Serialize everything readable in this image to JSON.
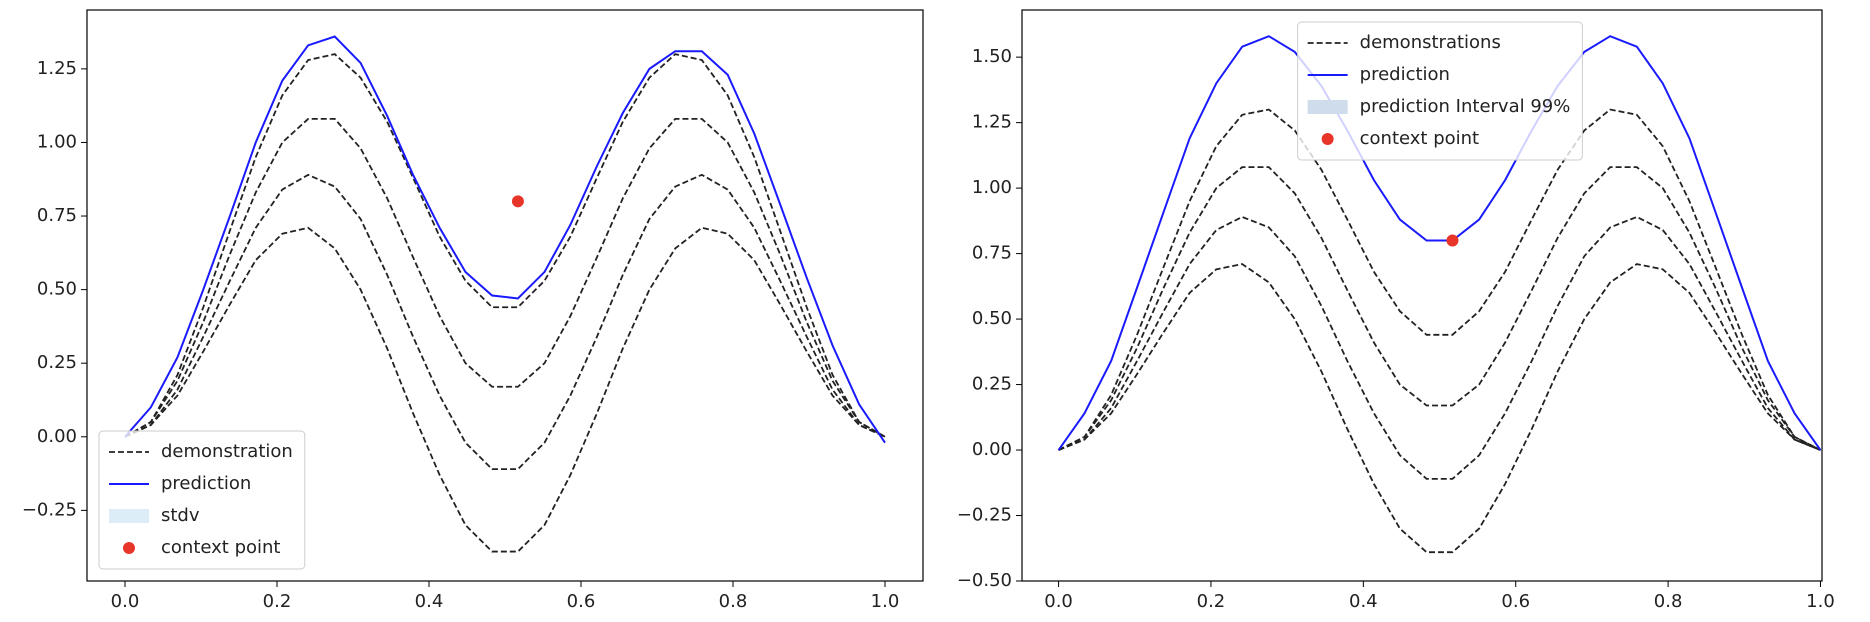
{
  "chart_data": [
    {
      "type": "line",
      "x": [
        0,
        0.034,
        0.069,
        0.103,
        0.138,
        0.172,
        0.207,
        0.241,
        0.276,
        0.31,
        0.345,
        0.379,
        0.414,
        0.448,
        0.483,
        0.517,
        0.552,
        0.586,
        0.621,
        0.655,
        0.69,
        0.724,
        0.759,
        0.793,
        0.828,
        0.862,
        0.897,
        0.931,
        0.966,
        1
      ],
      "xlim": [
        -0.05,
        1.05
      ],
      "ylim": [
        -0.49,
        1.45
      ],
      "xticks": [
        {
          "value": 0,
          "label": "0.0"
        },
        {
          "value": 0.2,
          "label": "0.2"
        },
        {
          "value": 0.4,
          "label": "0.4"
        },
        {
          "value": 0.6,
          "label": "0.6"
        },
        {
          "value": 0.8,
          "label": "0.8"
        },
        {
          "value": 1,
          "label": "1.0"
        }
      ],
      "yticks": [
        {
          "value": -0.25,
          "label": "−0.25"
        },
        {
          "value": 0,
          "label": "0.00"
        },
        {
          "value": 0.25,
          "label": "0.25"
        },
        {
          "value": 0.5,
          "label": "0.50"
        },
        {
          "value": 0.75,
          "label": "0.75"
        },
        {
          "value": 1,
          "label": "1.00"
        },
        {
          "value": 1.25,
          "label": "1.25"
        }
      ],
      "demonstrations": {
        "name": "demonstration",
        "color": "#222222",
        "curves": [
          [
            0,
            0.05,
            0.21,
            0.44,
            0.7,
            0.95,
            1.16,
            1.28,
            1.3,
            1.22,
            1.07,
            0.88,
            0.68,
            0.53,
            0.44,
            0.44,
            0.53,
            0.68,
            0.88,
            1.07,
            1.22,
            1.3,
            1.28,
            1.16,
            0.95,
            0.7,
            0.44,
            0.21,
            0.05,
            0
          ],
          [
            0,
            0.05,
            0.19,
            0.39,
            0.62,
            0.83,
            1.0,
            1.08,
            1.08,
            0.98,
            0.81,
            0.61,
            0.41,
            0.25,
            0.17,
            0.17,
            0.25,
            0.41,
            0.61,
            0.81,
            0.98,
            1.08,
            1.08,
            1.0,
            0.83,
            0.62,
            0.39,
            0.19,
            0.05,
            0
          ],
          [
            0,
            0.04,
            0.16,
            0.34,
            0.53,
            0.71,
            0.84,
            0.89,
            0.85,
            0.74,
            0.55,
            0.34,
            0.14,
            -0.02,
            -0.11,
            -0.11,
            -0.02,
            0.14,
            0.34,
            0.55,
            0.74,
            0.85,
            0.89,
            0.84,
            0.71,
            0.53,
            0.34,
            0.16,
            0.04,
            0
          ],
          [
            0,
            0.04,
            0.14,
            0.29,
            0.45,
            0.6,
            0.69,
            0.71,
            0.64,
            0.5,
            0.3,
            0.08,
            -0.13,
            -0.3,
            -0.39,
            -0.39,
            -0.3,
            -0.13,
            0.08,
            0.3,
            0.5,
            0.64,
            0.71,
            0.69,
            0.6,
            0.45,
            0.29,
            0.14,
            0.04,
            0
          ]
        ]
      },
      "prediction": {
        "name": "prediction",
        "color": "#1a1aff",
        "values": [
          0,
          0.1,
          0.27,
          0.5,
          0.75,
          1.0,
          1.21,
          1.33,
          1.36,
          1.27,
          1.09,
          0.89,
          0.71,
          0.56,
          0.48,
          0.47,
          0.56,
          0.72,
          0.92,
          1.1,
          1.25,
          1.31,
          1.31,
          1.23,
          1.03,
          0.79,
          0.54,
          0.31,
          0.11,
          -0.02
        ]
      },
      "interval": {
        "name": "stdv",
        "color": "#dcedf7"
      },
      "context": {
        "name": "context point",
        "color": "#e8352a",
        "x": [
          0.517
        ],
        "y": [
          0.8
        ]
      },
      "legend": "lower left"
    },
    {
      "type": "line",
      "x": [
        0,
        0.034,
        0.069,
        0.103,
        0.138,
        0.172,
        0.207,
        0.241,
        0.276,
        0.31,
        0.345,
        0.379,
        0.414,
        0.448,
        0.483,
        0.517,
        0.552,
        0.586,
        0.621,
        0.655,
        0.69,
        0.724,
        0.759,
        0.793,
        0.828,
        0.862,
        0.897,
        0.931,
        0.966,
        1
      ],
      "xlim": [
        -0.048,
        1.002
      ],
      "ylim": [
        -0.5,
        1.68
      ],
      "xticks": [
        {
          "value": 0,
          "label": "0.0"
        },
        {
          "value": 0.2,
          "label": "0.2"
        },
        {
          "value": 0.4,
          "label": "0.4"
        },
        {
          "value": 0.6,
          "label": "0.6"
        },
        {
          "value": 0.8,
          "label": "0.8"
        },
        {
          "value": 1,
          "label": "1.0"
        }
      ],
      "yticks": [
        {
          "value": -0.5,
          "label": "−0.50"
        },
        {
          "value": -0.25,
          "label": "−0.25"
        },
        {
          "value": 0,
          "label": "0.00"
        },
        {
          "value": 0.25,
          "label": "0.25"
        },
        {
          "value": 0.5,
          "label": "0.50"
        },
        {
          "value": 0.75,
          "label": "0.75"
        },
        {
          "value": 1,
          "label": "1.00"
        },
        {
          "value": 1.25,
          "label": "1.25"
        },
        {
          "value": 1.5,
          "label": "1.50"
        }
      ],
      "demonstrations": {
        "name": "demonstrations",
        "color": "#222222",
        "curves": [
          [
            0,
            0.05,
            0.21,
            0.44,
            0.7,
            0.95,
            1.16,
            1.28,
            1.3,
            1.22,
            1.07,
            0.88,
            0.68,
            0.53,
            0.44,
            0.44,
            0.53,
            0.68,
            0.88,
            1.07,
            1.22,
            1.3,
            1.28,
            1.16,
            0.95,
            0.7,
            0.44,
            0.21,
            0.05,
            0
          ],
          [
            0,
            0.05,
            0.19,
            0.39,
            0.62,
            0.83,
            1.0,
            1.08,
            1.08,
            0.98,
            0.81,
            0.61,
            0.41,
            0.25,
            0.17,
            0.17,
            0.25,
            0.41,
            0.61,
            0.81,
            0.98,
            1.08,
            1.08,
            1.0,
            0.83,
            0.62,
            0.39,
            0.19,
            0.05,
            0
          ],
          [
            0,
            0.04,
            0.16,
            0.34,
            0.53,
            0.71,
            0.84,
            0.89,
            0.85,
            0.74,
            0.55,
            0.34,
            0.14,
            -0.02,
            -0.11,
            -0.11,
            -0.02,
            0.14,
            0.34,
            0.55,
            0.74,
            0.85,
            0.89,
            0.84,
            0.71,
            0.53,
            0.34,
            0.16,
            0.04,
            0
          ],
          [
            0,
            0.04,
            0.14,
            0.29,
            0.45,
            0.6,
            0.69,
            0.71,
            0.64,
            0.5,
            0.3,
            0.08,
            -0.13,
            -0.3,
            -0.39,
            -0.39,
            -0.3,
            -0.13,
            0.08,
            0.3,
            0.5,
            0.64,
            0.71,
            0.69,
            0.6,
            0.45,
            0.29,
            0.14,
            0.04,
            0
          ]
        ]
      },
      "prediction": {
        "name": "prediction",
        "color": "#1a1aff",
        "values": [
          0,
          0.14,
          0.34,
          0.62,
          0.91,
          1.19,
          1.4,
          1.54,
          1.58,
          1.52,
          1.39,
          1.22,
          1.03,
          0.88,
          0.8,
          0.8,
          0.88,
          1.03,
          1.22,
          1.39,
          1.52,
          1.58,
          1.54,
          1.4,
          1.19,
          0.91,
          0.62,
          0.34,
          0.14,
          0
        ]
      },
      "interval": {
        "name": "prediction Interval 99%",
        "color": "#cfdcec"
      },
      "context": {
        "name": "context point",
        "color": "#e8352a",
        "x": [
          0.517
        ],
        "y": [
          0.8
        ]
      },
      "legend": "upper center"
    }
  ]
}
